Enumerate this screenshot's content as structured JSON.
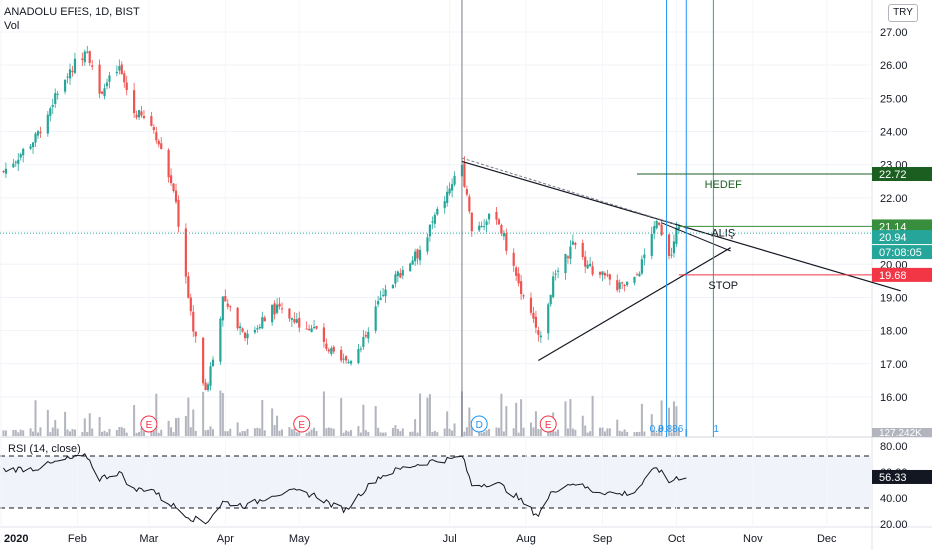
{
  "header": {
    "symbol_line": "ANADOLU EFES, 1D, BIST",
    "volume_label": "Vol"
  },
  "currency_button": "TRY",
  "colors": {
    "up": "#26a69a",
    "down": "#ef5350",
    "volume": "#b2b5be",
    "trendline": "#131722",
    "fib_line": "#2196f3",
    "target_green": "#1b5e20",
    "buy_green": "#388e3c",
    "current_teal": "#26a69a",
    "stop_red": "#f23645"
  },
  "chart_data": [
    {
      "type": "candlestick",
      "title": "ANADOLU EFES, 1D, BIST",
      "y_axis": {
        "ticks": [
          "27.00",
          "26.00",
          "25.00",
          "24.00",
          "23.00",
          "22.00",
          "21.00",
          "20.00",
          "19.00",
          "18.00",
          "17.00",
          "16.00"
        ],
        "ylim": [
          15.3,
          27.7
        ]
      },
      "x_axis": {
        "ticks": [
          "2020",
          "Feb",
          "Mar",
          "Apr",
          "May",
          "Jul",
          "Aug",
          "Sep",
          "Oct",
          "Nov",
          "Dec"
        ]
      },
      "close_path": [
        [
          "2020-01-02",
          22.8
        ],
        [
          "2020-01-15",
          23.8
        ],
        [
          "2020-01-28",
          25.8
        ],
        [
          "2020-02-05",
          26.5
        ],
        [
          "2020-02-10",
          25.2
        ],
        [
          "2020-02-18",
          25.9
        ],
        [
          "2020-02-24",
          24.6
        ],
        [
          "2020-03-02",
          24.2
        ],
        [
          "2020-03-06",
          23.6
        ],
        [
          "2020-03-12",
          21.8
        ],
        [
          "2020-03-18",
          18.5
        ],
        [
          "2020-03-24",
          16.1
        ],
        [
          "2020-03-31",
          18.9
        ],
        [
          "2020-04-10",
          17.8
        ],
        [
          "2020-04-20",
          18.7
        ],
        [
          "2020-04-30",
          18.3
        ],
        [
          "2020-05-08",
          18.0
        ],
        [
          "2020-05-15",
          17.2
        ],
        [
          "2020-05-20",
          17.0
        ],
        [
          "2020-05-26",
          17.6
        ],
        [
          "2020-06-02",
          18.8
        ],
        [
          "2020-06-10",
          19.7
        ],
        [
          "2020-06-18",
          20.3
        ],
        [
          "2020-06-25",
          21.4
        ],
        [
          "2020-07-02",
          22.4
        ],
        [
          "2020-07-06",
          23.0
        ],
        [
          "2020-07-10",
          21.0
        ],
        [
          "2020-07-20",
          21.5
        ],
        [
          "2020-07-27",
          19.8
        ],
        [
          "2020-08-03",
          18.5
        ],
        [
          "2020-08-06",
          17.7
        ],
        [
          "2020-08-12",
          19.5
        ],
        [
          "2020-08-20",
          20.6
        ],
        [
          "2020-08-28",
          19.8
        ],
        [
          "2020-09-08",
          19.3
        ],
        [
          "2020-09-14",
          19.5
        ],
        [
          "2020-09-18",
          20.2
        ],
        [
          "2020-09-23",
          21.3
        ],
        [
          "2020-09-28",
          20.1
        ],
        [
          "2020-10-01",
          21.0
        ],
        [
          "2020-10-05",
          20.94
        ]
      ],
      "last_price": 20.94,
      "countdown": "07:08:05",
      "levels": [
        {
          "label": "HEDEF",
          "price": "22.72"
        },
        {
          "label": "ALIŞ",
          "price": "21.14"
        },
        {
          "label": "STOP",
          "price": "19.68"
        }
      ],
      "fibonacci_labels": [
        "0.8",
        "0.886",
        "1"
      ],
      "events": [
        {
          "marker": "E",
          "date": "2020-03-01"
        },
        {
          "marker": "E",
          "date": "2020-05-02"
        },
        {
          "marker": "D",
          "date": "2020-07-13"
        },
        {
          "marker": "E",
          "date": "2020-08-10"
        }
      ],
      "volume_last_label": "127.242K"
    },
    {
      "type": "line",
      "title": "RSI (14, close)",
      "y_axis": {
        "ticks": [
          "80.00",
          "60.00",
          "40.00",
          "20.00"
        ],
        "ylim": [
          17,
          84
        ]
      },
      "bands": [
        70,
        30
      ],
      "last_value": "56.33",
      "rsi_path": [
        [
          "2020-01-02",
          62
        ],
        [
          "2020-01-15",
          63
        ],
        [
          "2020-01-28",
          70
        ],
        [
          "2020-02-05",
          72
        ],
        [
          "2020-02-10",
          55
        ],
        [
          "2020-02-18",
          60
        ],
        [
          "2020-02-24",
          46
        ],
        [
          "2020-03-02",
          48
        ],
        [
          "2020-03-06",
          40
        ],
        [
          "2020-03-12",
          33
        ],
        [
          "2020-03-18",
          25
        ],
        [
          "2020-03-24",
          21
        ],
        [
          "2020-03-31",
          37
        ],
        [
          "2020-04-10",
          34
        ],
        [
          "2020-04-20",
          43
        ],
        [
          "2020-04-30",
          45
        ],
        [
          "2020-05-08",
          42
        ],
        [
          "2020-05-15",
          34
        ],
        [
          "2020-05-20",
          31
        ],
        [
          "2020-05-26",
          44
        ],
        [
          "2020-06-02",
          56
        ],
        [
          "2020-06-10",
          62
        ],
        [
          "2020-06-18",
          66
        ],
        [
          "2020-06-25",
          69
        ],
        [
          "2020-07-02",
          70
        ],
        [
          "2020-07-06",
          73
        ],
        [
          "2020-07-10",
          50
        ],
        [
          "2020-07-20",
          52
        ],
        [
          "2020-07-27",
          43
        ],
        [
          "2020-08-03",
          31
        ],
        [
          "2020-08-06",
          27
        ],
        [
          "2020-08-12",
          46
        ],
        [
          "2020-08-20",
          52
        ],
        [
          "2020-08-28",
          46
        ],
        [
          "2020-09-08",
          43
        ],
        [
          "2020-09-14",
          45
        ],
        [
          "2020-09-18",
          53
        ],
        [
          "2020-09-23",
          64
        ],
        [
          "2020-09-28",
          52
        ],
        [
          "2020-10-01",
          56
        ],
        [
          "2020-10-05",
          56.33
        ]
      ]
    }
  ]
}
